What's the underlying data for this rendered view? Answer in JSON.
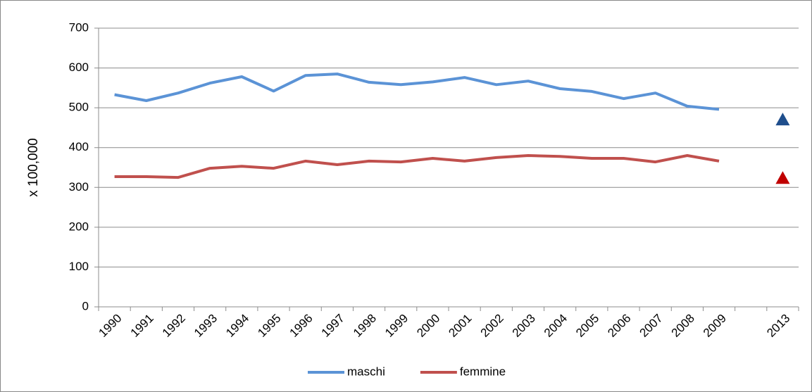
{
  "chart_data": {
    "type": "line",
    "y_label": "x 100,000",
    "categories": [
      "1990",
      "1991",
      "1992",
      "1993",
      "1994",
      "1995",
      "1996",
      "1997",
      "1998",
      "1999",
      "2000",
      "2001",
      "2002",
      "2003",
      "2004",
      "2005",
      "2006",
      "2007",
      "2008",
      "2009",
      null,
      "2013"
    ],
    "series": [
      {
        "name": "maschi",
        "color": "#5b93d6",
        "marker_color": "#1f4e8c",
        "values": [
          533,
          518,
          537,
          562,
          578,
          542,
          581,
          585,
          564,
          558,
          565,
          576,
          558,
          567,
          548,
          541,
          523,
          537,
          504,
          496,
          null,
          470
        ]
      },
      {
        "name": "femmine",
        "color": "#c0504d",
        "marker_color": "#c00000",
        "values": [
          327,
          327,
          325,
          348,
          353,
          348,
          366,
          357,
          366,
          364,
          373,
          366,
          375,
          380,
          378,
          373,
          373,
          364,
          380,
          366,
          null,
          323
        ]
      }
    ],
    "ylim": [
      0,
      700
    ],
    "yticks": [
      0,
      100,
      200,
      300,
      400,
      500,
      600,
      700
    ],
    "grid": true,
    "legend": "bottom"
  }
}
